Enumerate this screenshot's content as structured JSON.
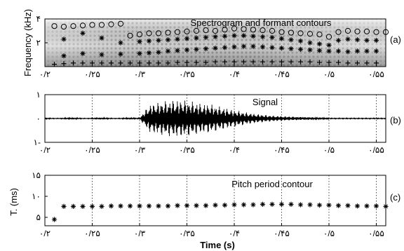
{
  "chart_data": [
    {
      "type": "scatter",
      "panel_label": "(a)",
      "title": "Spectrogram and formant contours",
      "ylabel": "Frequency (kHz)",
      "xlim": [
        0.2,
        0.56
      ],
      "ylim": [
        0,
        4
      ],
      "x_ticks": [
        0.2,
        0.25,
        0.3,
        0.35,
        0.4,
        0.45,
        0.5,
        0.55
      ],
      "x_tick_labels": [
        "۰/۲",
        "۰/۲۵",
        "۰/۳",
        "۰/۳۵",
        "۰/۴",
        "۰/۴۵",
        "۰/۵",
        "۰/۵۵"
      ],
      "y_ticks": [
        2,
        4
      ],
      "y_tick_labels": [
        "۲",
        "۴"
      ],
      "background": "spectrogram",
      "series": [
        {
          "marker": "circle",
          "x": [
            0.21,
            0.22,
            0.23,
            0.24,
            0.25,
            0.26,
            0.27,
            0.28,
            0.29,
            0.3,
            0.31,
            0.32,
            0.33,
            0.34,
            0.35,
            0.36,
            0.37,
            0.38,
            0.39,
            0.4,
            0.41,
            0.42,
            0.43,
            0.44,
            0.45,
            0.46,
            0.47,
            0.48,
            0.49,
            0.5,
            0.51,
            0.52,
            0.53,
            0.54,
            0.55,
            0.56
          ],
          "y": [
            3.4,
            3.35,
            3.4,
            3.45,
            3.5,
            3.5,
            3.55,
            3.6,
            2.6,
            2.7,
            2.8,
            2.8,
            2.85,
            2.9,
            2.95,
            3.0,
            3.05,
            3.0,
            3.1,
            3.2,
            3.15,
            3.1,
            3.05,
            3.0,
            2.9,
            2.85,
            2.8,
            2.75,
            2.7,
            2.5,
            2.9,
            3.0,
            2.95,
            2.95,
            2.9,
            2.9
          ]
        },
        {
          "marker": "star",
          "x": [
            0.22,
            0.24,
            0.26,
            0.28,
            0.3,
            0.31,
            0.32,
            0.33,
            0.34,
            0.35,
            0.36,
            0.37,
            0.38,
            0.39,
            0.4,
            0.41,
            0.42,
            0.43,
            0.44,
            0.45,
            0.46,
            0.47,
            0.48,
            0.49,
            0.5,
            0.51,
            0.52,
            0.53,
            0.54,
            0.55
          ],
          "y": [
            2.3,
            2.8,
            2.4,
            2.0,
            2.1,
            2.15,
            2.2,
            2.25,
            2.3,
            2.35,
            2.4,
            2.45,
            2.5,
            2.55,
            2.6,
            2.6,
            2.55,
            2.5,
            2.45,
            2.35,
            2.25,
            2.15,
            2.0,
            1.9,
            1.8,
            2.2,
            2.3,
            2.25,
            2.2,
            2.2
          ]
        },
        {
          "marker": "star",
          "x": [
            0.22,
            0.24,
            0.26,
            0.28,
            0.3,
            0.31,
            0.32,
            0.33,
            0.34,
            0.35,
            0.36,
            0.37,
            0.38,
            0.39,
            0.4,
            0.41,
            0.42,
            0.43,
            0.44,
            0.45,
            0.46,
            0.47,
            0.48,
            0.49,
            0.5,
            0.51,
            0.52,
            0.53,
            0.54,
            0.55
          ],
          "y": [
            0.9,
            1.1,
            1.0,
            1.05,
            1.1,
            1.15,
            1.2,
            1.3,
            1.35,
            1.4,
            1.45,
            1.5,
            1.55,
            1.6,
            1.65,
            1.7,
            1.7,
            1.65,
            1.6,
            1.55,
            1.5,
            1.45,
            1.4,
            1.35,
            1.3,
            1.3,
            1.25,
            1.3,
            1.3,
            1.3
          ]
        },
        {
          "marker": "plus",
          "x": [
            0.21,
            0.22,
            0.23,
            0.24,
            0.25,
            0.26,
            0.27,
            0.28,
            0.29,
            0.3,
            0.31,
            0.32,
            0.33,
            0.34,
            0.35,
            0.36,
            0.37,
            0.38,
            0.39,
            0.4,
            0.41,
            0.42,
            0.43,
            0.44,
            0.45,
            0.46,
            0.47,
            0.48,
            0.49,
            0.5,
            0.51,
            0.52,
            0.53,
            0.54,
            0.55
          ],
          "y": [
            0.2,
            0.25,
            0.3,
            0.3,
            0.3,
            0.3,
            0.3,
            0.3,
            0.3,
            0.3,
            0.3,
            0.3,
            0.3,
            0.35,
            0.35,
            0.35,
            0.35,
            0.4,
            0.4,
            0.4,
            0.4,
            0.4,
            0.4,
            0.4,
            0.4,
            0.4,
            0.4,
            0.4,
            0.35,
            0.35,
            0.35,
            0.3,
            0.3,
            0.3,
            0.3
          ]
        }
      ]
    },
    {
      "type": "line",
      "panel_label": "(b)",
      "title": "Signal",
      "xlim": [
        0.2,
        0.56
      ],
      "ylim": [
        -1,
        1
      ],
      "x_ticks": [
        0.2,
        0.25,
        0.3,
        0.35,
        0.4,
        0.45,
        0.5,
        0.55
      ],
      "x_tick_labels": [
        "۰/۲",
        "۰/۲۵",
        "۰/۳",
        "۰/۳۵",
        "۰/۴",
        "۰/۴۵",
        "۰/۵",
        "۰/۵۵"
      ],
      "y_ticks": [
        -1,
        0,
        1
      ],
      "y_tick_labels": [
        "۱-",
        "۰",
        "۱"
      ],
      "grid": "vertical dotted",
      "waveform": "speech signal, quiet until ~0.30 s, bursts to about ±0.8 between 0.30 and 0.40 s, decays to near zero by ~0.50 s"
    },
    {
      "type": "scatter",
      "panel_label": "(c)",
      "title": "Pitch period contour",
      "ylabel": "T. (ms)",
      "xlabel": "Time (s)",
      "xlim": [
        0.2,
        0.56
      ],
      "ylim": [
        3,
        15
      ],
      "x_ticks": [
        0.2,
        0.25,
        0.3,
        0.35,
        0.4,
        0.45,
        0.5,
        0.55
      ],
      "x_tick_labels": [
        "۰/۲",
        "۰/۲۵",
        "۰/۳",
        "۰/۳۵",
        "۰/۴",
        "۰/۴۵",
        "۰/۵",
        "۰/۵۵"
      ],
      "y_ticks": [
        5,
        10,
        15
      ],
      "y_tick_labels": [
        "۵",
        "۱۰",
        "۱۵"
      ],
      "grid": "vertical dotted",
      "series": [
        {
          "marker": "star",
          "x": [
            0.21,
            0.22,
            0.23,
            0.24,
            0.25,
            0.26,
            0.27,
            0.28,
            0.29,
            0.3,
            0.31,
            0.32,
            0.33,
            0.34,
            0.35,
            0.36,
            0.37,
            0.38,
            0.39,
            0.4,
            0.41,
            0.42,
            0.43,
            0.44,
            0.45,
            0.46,
            0.47,
            0.48,
            0.49,
            0.5,
            0.51,
            0.52,
            0.53,
            0.54,
            0.55,
            0.56
          ],
          "y": [
            4.5,
            7.6,
            7.6,
            7.6,
            7.6,
            7.6,
            7.7,
            7.7,
            7.7,
            7.7,
            7.7,
            7.7,
            7.7,
            7.8,
            7.8,
            7.8,
            7.8,
            7.9,
            7.9,
            8.0,
            8.0,
            8.0,
            8.1,
            8.1,
            8.1,
            8.1,
            8.0,
            8.0,
            7.9,
            7.9,
            7.8,
            7.8,
            7.7,
            7.7,
            7.7,
            7.6
          ]
        }
      ]
    }
  ]
}
